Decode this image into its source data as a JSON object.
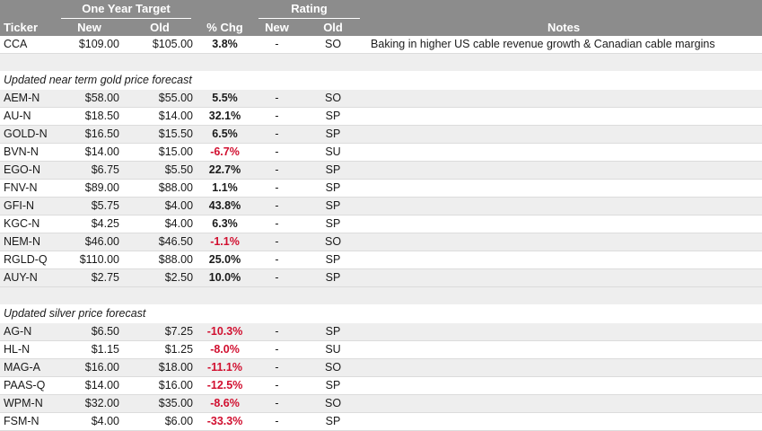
{
  "header": {
    "group_target": "One Year Target",
    "group_rating": "Rating",
    "col_ticker": "Ticker",
    "col_new": "New",
    "col_old": "Old",
    "col_chg": "% Chg",
    "col_rating_new": "New",
    "col_rating_old": "Old",
    "col_notes": "Notes"
  },
  "rows": [
    {
      "ticker": "CCA",
      "new": "$109.00",
      "old": "$105.00",
      "chg": "3.8%",
      "negative": false,
      "rating_new": "-",
      "rating_old": "SO",
      "notes": "Baking in higher US cable revenue growth & Canadian cable margins"
    }
  ],
  "sections": [
    {
      "title": "Updated near term gold price forecast",
      "rows": [
        {
          "ticker": "AEM-N",
          "new": "$58.00",
          "old": "$55.00",
          "chg": "5.5%",
          "negative": false,
          "rating_new": "-",
          "rating_old": "SO"
        },
        {
          "ticker": "AU-N",
          "new": "$18.50",
          "old": "$14.00",
          "chg": "32.1%",
          "negative": false,
          "rating_new": "-",
          "rating_old": "SP"
        },
        {
          "ticker": "GOLD-N",
          "new": "$16.50",
          "old": "$15.50",
          "chg": "6.5%",
          "negative": false,
          "rating_new": "-",
          "rating_old": "SP"
        },
        {
          "ticker": "BVN-N",
          "new": "$14.00",
          "old": "$15.00",
          "chg": "-6.7%",
          "negative": true,
          "rating_new": "-",
          "rating_old": "SU"
        },
        {
          "ticker": "EGO-N",
          "new": "$6.75",
          "old": "$5.50",
          "chg": "22.7%",
          "negative": false,
          "rating_new": "-",
          "rating_old": "SP"
        },
        {
          "ticker": "FNV-N",
          "new": "$89.00",
          "old": "$88.00",
          "chg": "1.1%",
          "negative": false,
          "rating_new": "-",
          "rating_old": "SP"
        },
        {
          "ticker": "GFI-N",
          "new": "$5.75",
          "old": "$4.00",
          "chg": "43.8%",
          "negative": false,
          "rating_new": "-",
          "rating_old": "SP"
        },
        {
          "ticker": "KGC-N",
          "new": "$4.25",
          "old": "$4.00",
          "chg": "6.3%",
          "negative": false,
          "rating_new": "-",
          "rating_old": "SP"
        },
        {
          "ticker": "NEM-N",
          "new": "$46.00",
          "old": "$46.50",
          "chg": "-1.1%",
          "negative": true,
          "rating_new": "-",
          "rating_old": "SO"
        },
        {
          "ticker": "RGLD-Q",
          "new": "$110.00",
          "old": "$88.00",
          "chg": "25.0%",
          "negative": false,
          "rating_new": "-",
          "rating_old": "SP"
        },
        {
          "ticker": "AUY-N",
          "new": "$2.75",
          "old": "$2.50",
          "chg": "10.0%",
          "negative": false,
          "rating_new": "-",
          "rating_old": "SP"
        }
      ]
    },
    {
      "title": "Updated silver price forecast",
      "rows": [
        {
          "ticker": "AG-N",
          "new": "$6.50",
          "old": "$7.25",
          "chg": "-10.3%",
          "negative": true,
          "rating_new": "-",
          "rating_old": "SP"
        },
        {
          "ticker": "HL-N",
          "new": "$1.15",
          "old": "$1.25",
          "chg": "-8.0%",
          "negative": true,
          "rating_new": "-",
          "rating_old": "SU"
        },
        {
          "ticker": "MAG-A",
          "new": "$16.00",
          "old": "$18.00",
          "chg": "-11.1%",
          "negative": true,
          "rating_new": "-",
          "rating_old": "SO"
        },
        {
          "ticker": "PAAS-Q",
          "new": "$14.00",
          "old": "$16.00",
          "chg": "-12.5%",
          "negative": true,
          "rating_new": "-",
          "rating_old": "SP"
        },
        {
          "ticker": "WPM-N",
          "new": "$32.00",
          "old": "$35.00",
          "chg": "-8.6%",
          "negative": true,
          "rating_new": "-",
          "rating_old": "SO"
        },
        {
          "ticker": "FSM-N",
          "new": "$4.00",
          "old": "$6.00",
          "chg": "-33.3%",
          "negative": true,
          "rating_new": "-",
          "rating_old": "SP"
        }
      ]
    }
  ],
  "colors": {
    "header_bg": "#8c8c8c",
    "header_text": "#ffffff",
    "negative": "#d10f2f",
    "stripe": "#eeeeee"
  }
}
